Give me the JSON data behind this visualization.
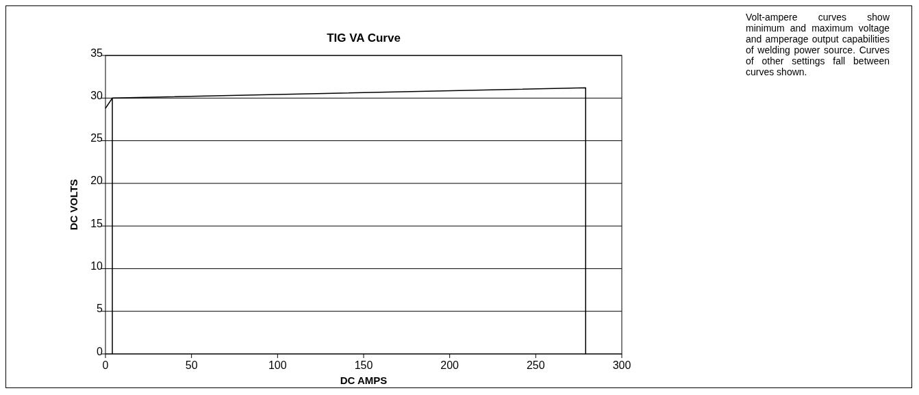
{
  "chart_data": {
    "type": "line",
    "title": "TIG VA Curve",
    "xlabel": "DC AMPS",
    "ylabel": "DC VOLTS",
    "series": [
      {
        "color": "#000000",
        "x": [
          0,
          4,
          4
        ],
        "values": [
          28.8,
          30,
          0
        ]
      },
      {
        "color": "#000000",
        "x": [
          4,
          279,
          279
        ],
        "values": [
          30,
          31.2,
          0
        ]
      }
    ],
    "xlim": [
      0,
      300
    ],
    "xticks": [
      0,
      50,
      100,
      150,
      200,
      250,
      300
    ],
    "ylim": [
      0,
      35
    ],
    "yticks": [
      0,
      5,
      10,
      15,
      20,
      25,
      30,
      35
    ],
    "grid": "y",
    "marker": "none",
    "line_style": "solid",
    "annotations": [
      "Volt-ampere curves show minimum and maximum voltage and amperage output capabilities of welding power source. Curves of other settings fall between curves shown."
    ]
  }
}
